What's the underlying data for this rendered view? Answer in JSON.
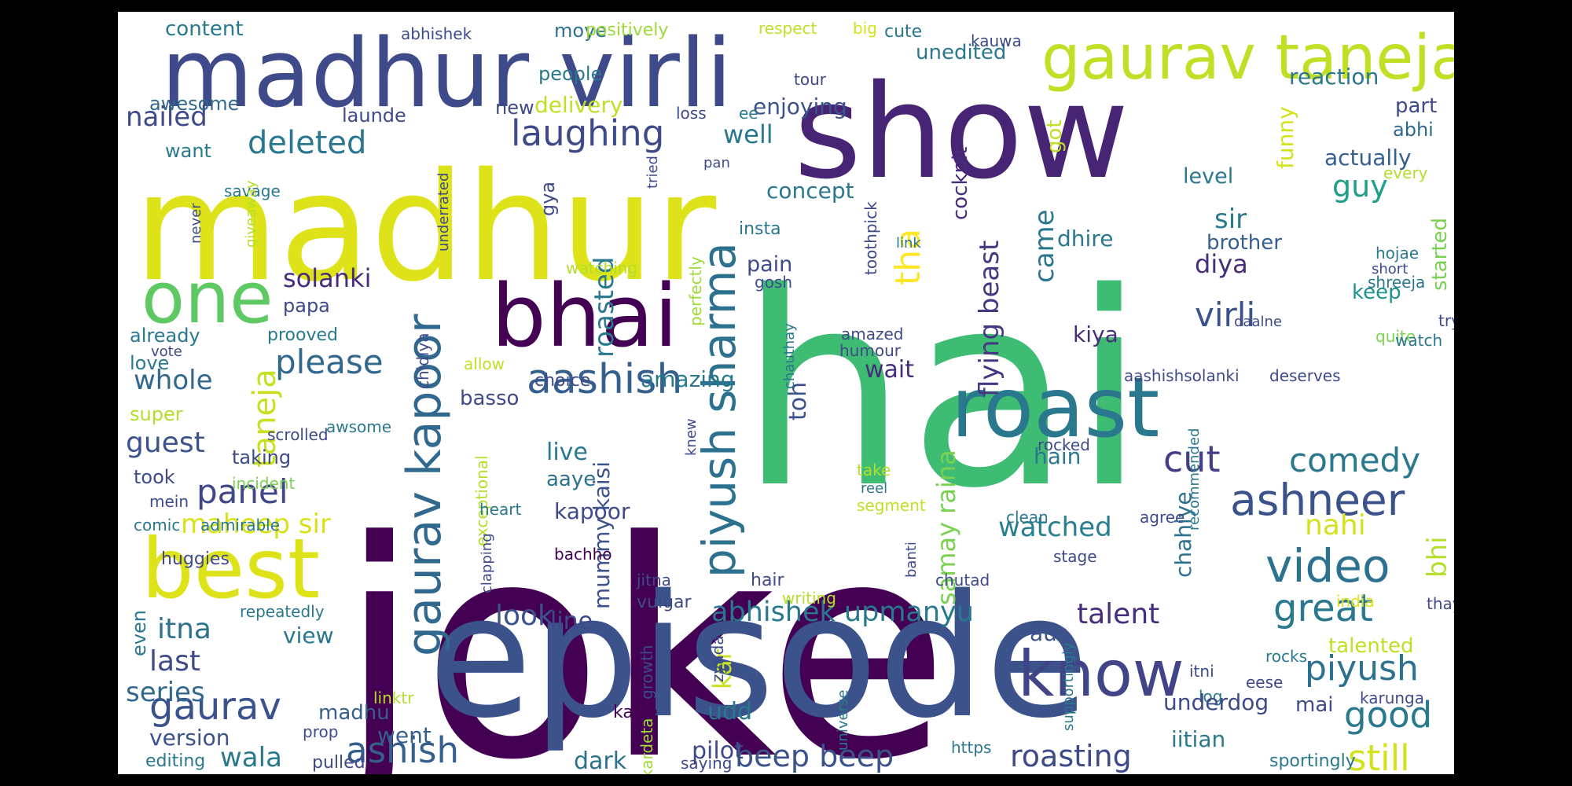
{
  "words": [
    {
      "text": "hai",
      "color": "#3fbc73"
    },
    {
      "text": "joke",
      "color": "#440154"
    },
    {
      "text": "episode",
      "color": "#3b528b"
    },
    {
      "text": "madhur",
      "color": "#dde318"
    },
    {
      "text": "show",
      "color": "#482475"
    },
    {
      "text": "madhur virli",
      "color": "#3e4a89"
    },
    {
      "text": "gaurav taneja",
      "color": "#c0df25"
    },
    {
      "text": "roast",
      "color": "#2a788e"
    },
    {
      "text": "bhai",
      "color": "#440154"
    },
    {
      "text": "best",
      "color": "#dde318"
    },
    {
      "text": "one",
      "color": "#5ec962"
    },
    {
      "text": "know",
      "color": "#414487"
    },
    {
      "text": "gaurav kapoor",
      "color": "#31688e"
    },
    {
      "text": "piyush sharma",
      "color": "#2c728e"
    },
    {
      "text": "aashish",
      "color": "#355f8d"
    },
    {
      "text": "ashneer",
      "color": "#3b528b"
    },
    {
      "text": "video",
      "color": "#2c728e"
    },
    {
      "text": "great",
      "color": "#2a788e"
    },
    {
      "text": "cut",
      "color": "#433e85"
    },
    {
      "text": "comedy",
      "color": "#2a788e"
    },
    {
      "text": "ashish",
      "color": "#355f8d"
    },
    {
      "text": "piyush",
      "color": "#2c728e"
    },
    {
      "text": "gaurav",
      "color": "#3b528b"
    },
    {
      "text": "laughing",
      "color": "#3e4a89"
    },
    {
      "text": "deleted",
      "color": "#2a788e"
    },
    {
      "text": "please",
      "color": "#31688e"
    },
    {
      "text": "panel",
      "color": "#404688"
    },
    {
      "text": "still",
      "color": "#d2e21b"
    },
    {
      "text": "good",
      "color": "#2a788e"
    },
    {
      "text": "beep beep",
      "color": "#3b528b"
    },
    {
      "text": "roasting",
      "color": "#3e4a89"
    },
    {
      "text": "abhishek upmanyu",
      "color": "#2a788e"
    },
    {
      "text": "talent",
      "color": "#472d7b"
    },
    {
      "text": "watched",
      "color": "#277f8e"
    },
    {
      "text": "samay raina",
      "color": "#7ad151"
    },
    {
      "text": "flying beast",
      "color": "#453781"
    },
    {
      "text": "tha",
      "color": "#fde725"
    },
    {
      "text": "taneja",
      "color": "#c8e020"
    },
    {
      "text": "maheep sir",
      "color": "#d8e219"
    },
    {
      "text": "guest",
      "color": "#3b528b"
    },
    {
      "text": "whole",
      "color": "#31688e"
    },
    {
      "text": "solanki",
      "color": "#472d7b"
    },
    {
      "text": "nailed",
      "color": "#3e4a89"
    },
    {
      "text": "virli",
      "color": "#3b528b"
    },
    {
      "text": "diya",
      "color": "#472d7b"
    },
    {
      "text": "sir",
      "color": "#2a788e"
    },
    {
      "text": "guy",
      "color": "#1f9e89"
    },
    {
      "text": "nahi",
      "color": "#d2e21b"
    },
    {
      "text": "bhi",
      "color": "#b5de2b"
    },
    {
      "text": "came",
      "color": "#2a788e"
    },
    {
      "text": "well",
      "color": "#2a788e"
    },
    {
      "text": "look",
      "color": "#3b528b"
    },
    {
      "text": "line",
      "color": "#3e4a89"
    },
    {
      "text": "itna",
      "color": "#2c728e"
    },
    {
      "text": "last",
      "color": "#3e4a89"
    },
    {
      "text": "series",
      "color": "#31688e"
    },
    {
      "text": "version",
      "color": "#3b528b"
    },
    {
      "text": "wala",
      "color": "#2a788e"
    },
    {
      "text": "went",
      "color": "#355f8d"
    },
    {
      "text": "madhu",
      "color": "#355f8d"
    },
    {
      "text": "view",
      "color": "#2a788e"
    },
    {
      "text": "kar",
      "color": "#c8e020"
    },
    {
      "text": "udd",
      "color": "#2a788e"
    },
    {
      "text": "pilot",
      "color": "#3e4a89"
    },
    {
      "text": "dark",
      "color": "#2c728e"
    },
    {
      "text": "kapoor",
      "color": "#3e4a89"
    },
    {
      "text": "aaye",
      "color": "#2c728e"
    },
    {
      "text": "live",
      "color": "#2a788e"
    },
    {
      "text": "mummy kaisi",
      "color": "#3b528b"
    },
    {
      "text": "roasted",
      "color": "#2a788e"
    },
    {
      "text": "amazing",
      "color": "#2a788e"
    },
    {
      "text": "toh",
      "color": "#3b528b"
    },
    {
      "text": "wait",
      "color": "#472d7b"
    },
    {
      "text": "aur",
      "color": "#3b528b"
    },
    {
      "text": "chahiye",
      "color": "#2c728e"
    },
    {
      "text": "hain",
      "color": "#2a788e"
    },
    {
      "text": "kiya",
      "color": "#472d7b"
    },
    {
      "text": "dhire",
      "color": "#2a788e"
    },
    {
      "text": "pain",
      "color": "#3e4a89"
    },
    {
      "text": "concept",
      "color": "#2a788e"
    },
    {
      "text": "cockpit",
      "color": "#472d7b"
    },
    {
      "text": "got",
      "color": "#c0df25"
    },
    {
      "text": "level",
      "color": "#2a788e"
    },
    {
      "text": "brother",
      "color": "#355f8d"
    },
    {
      "text": "keep",
      "color": "#21918c"
    },
    {
      "text": "funny",
      "color": "#d2e21b"
    },
    {
      "text": "actually",
      "color": "#355f8d"
    },
    {
      "text": "reaction",
      "color": "#2a788e"
    },
    {
      "text": "part",
      "color": "#3e4a89"
    },
    {
      "text": "abhi",
      "color": "#31688e"
    },
    {
      "text": "started",
      "color": "#7ad151"
    },
    {
      "text": "every",
      "color": "#b5de2b"
    },
    {
      "text": "unedited",
      "color": "#2a788e"
    },
    {
      "text": "enjoying",
      "color": "#3b528b"
    },
    {
      "text": "delivery",
      "color": "#c0df25"
    },
    {
      "text": "people",
      "color": "#2a788e"
    },
    {
      "text": "moye",
      "color": "#2c728e"
    },
    {
      "text": "new",
      "color": "#3e4a89"
    },
    {
      "text": "launde",
      "color": "#3e4a89"
    },
    {
      "text": "awesome",
      "color": "#31688e"
    },
    {
      "text": "want",
      "color": "#2a788e"
    },
    {
      "text": "content",
      "color": "#2a788e"
    },
    {
      "text": "abhishek",
      "color": "#3e4a89"
    },
    {
      "text": "positively",
      "color": "#a0da39"
    },
    {
      "text": "respect",
      "color": "#c0df25"
    },
    {
      "text": "big",
      "color": "#d2e21b"
    },
    {
      "text": "cute",
      "color": "#2a788e"
    },
    {
      "text": "kauwa",
      "color": "#3e4a89"
    },
    {
      "text": "tour",
      "color": "#3e4a89"
    },
    {
      "text": "loss",
      "color": "#3e4a89"
    },
    {
      "text": "ee",
      "color": "#2a788e"
    },
    {
      "text": "savage",
      "color": "#2a788e"
    },
    {
      "text": "never",
      "color": "#3e4a89"
    },
    {
      "text": "giveaway",
      "color": "#b5de2b"
    },
    {
      "text": "underrated",
      "color": "#3e4a89"
    },
    {
      "text": "tried",
      "color": "#3e4a89"
    },
    {
      "text": "gya",
      "color": "#3e4a89"
    },
    {
      "text": "pan",
      "color": "#3e4a89"
    },
    {
      "text": "insta",
      "color": "#2a788e"
    },
    {
      "text": "toothpick",
      "color": "#3e4a89"
    },
    {
      "text": "link",
      "color": "#2a788e"
    },
    {
      "text": "gosh",
      "color": "#3e4a89"
    },
    {
      "text": "perfectly",
      "color": "#a0da39"
    },
    {
      "text": "watching",
      "color": "#b5de2b"
    },
    {
      "text": "papa",
      "color": "#3e4a89"
    },
    {
      "text": "already",
      "color": "#2a788e"
    },
    {
      "text": "prooved",
      "color": "#2a788e"
    },
    {
      "text": "chidiya",
      "color": "#3e4a89"
    },
    {
      "text": "love",
      "color": "#2a788e"
    },
    {
      "text": "vote",
      "color": "#3e4a89"
    },
    {
      "text": "allow",
      "color": "#c0df25"
    },
    {
      "text": "choice",
      "color": "#3e4a89"
    },
    {
      "text": "chauthay",
      "color": "#2a788e"
    },
    {
      "text": "amazed",
      "color": "#3e4a89"
    },
    {
      "text": "humour",
      "color": "#3e4a89"
    },
    {
      "text": "hojae",
      "color": "#2a788e"
    },
    {
      "text": "shreeja",
      "color": "#2a788e"
    },
    {
      "text": "short",
      "color": "#3e4a89"
    },
    {
      "text": "daalne",
      "color": "#3e4a89"
    },
    {
      "text": "try",
      "color": "#3e4a89"
    },
    {
      "text": "quite",
      "color": "#7ad151"
    },
    {
      "text": "watch",
      "color": "#2a788e"
    },
    {
      "text": "aashishsolanki",
      "color": "#3e4a89"
    },
    {
      "text": "deserves",
      "color": "#3e4a89"
    },
    {
      "text": "basso",
      "color": "#3e4a89"
    },
    {
      "text": "awsome",
      "color": "#2a788e"
    },
    {
      "text": "super",
      "color": "#b5de2b"
    },
    {
      "text": "scrolled",
      "color": "#3e4a89"
    },
    {
      "text": "taking",
      "color": "#3e4a89"
    },
    {
      "text": "incident",
      "color": "#7ad151"
    },
    {
      "text": "took",
      "color": "#3e4a89"
    },
    {
      "text": "mein",
      "color": "#3e4a89"
    },
    {
      "text": "comic",
      "color": "#2a788e"
    },
    {
      "text": "admirable",
      "color": "#2a788e"
    },
    {
      "text": "huggies",
      "color": "#3e4a89"
    },
    {
      "text": "exceptional",
      "color": "#b5de2b"
    },
    {
      "text": "heart",
      "color": "#2a788e"
    },
    {
      "text": "bachho",
      "color": "#440154"
    },
    {
      "text": "knew",
      "color": "#3e4a89"
    },
    {
      "text": "rocked",
      "color": "#3e4a89"
    },
    {
      "text": "take",
      "color": "#b5de2b"
    },
    {
      "text": "reel",
      "color": "#2a788e"
    },
    {
      "text": "segment",
      "color": "#c0df25"
    },
    {
      "text": "banti",
      "color": "#3e4a89"
    },
    {
      "text": "clean",
      "color": "#2a788e"
    },
    {
      "text": "stage",
      "color": "#3e4a89"
    },
    {
      "text": "agree",
      "color": "#3e4a89"
    },
    {
      "text": "recommended",
      "color": "#2a788e"
    },
    {
      "text": "even",
      "color": "#2a788e"
    },
    {
      "text": "repeatedly",
      "color": "#2a788e"
    },
    {
      "text": "clapping",
      "color": "#3e4a89"
    },
    {
      "text": "jitna",
      "color": "#3e4a89"
    },
    {
      "text": "vulgar",
      "color": "#3e4a89"
    },
    {
      "text": "hair",
      "color": "#3e4a89"
    },
    {
      "text": "writing",
      "color": "#b5de2b"
    },
    {
      "text": "chutad",
      "color": "#3e4a89"
    },
    {
      "text": "india",
      "color": "#dde318"
    },
    {
      "text": "thay",
      "color": "#3e4a89"
    },
    {
      "text": "talented",
      "color": "#c0df25"
    },
    {
      "text": "rocks",
      "color": "#2a788e"
    },
    {
      "text": "eese",
      "color": "#3e4a89"
    },
    {
      "text": "log",
      "color": "#2a788e"
    },
    {
      "text": "itni",
      "color": "#3e4a89"
    },
    {
      "text": "karunga",
      "color": "#3e4a89"
    },
    {
      "text": "zyada",
      "color": "#3e4a89"
    },
    {
      "text": "growth",
      "color": "#3e4a89"
    },
    {
      "text": "kaise",
      "color": "#440154"
    },
    {
      "text": "kardeta",
      "color": "#a0da39"
    },
    {
      "text": "universe",
      "color": "#2a788e"
    },
    {
      "text": "supportingly",
      "color": "#2a788e"
    },
    {
      "text": "https",
      "color": "#2a788e"
    },
    {
      "text": "underdog",
      "color": "#3e4a89"
    },
    {
      "text": "mai",
      "color": "#3e4a89"
    },
    {
      "text": "iitian",
      "color": "#2a788e"
    },
    {
      "text": "sportingly",
      "color": "#2a788e"
    },
    {
      "text": "saying",
      "color": "#3e4a89"
    },
    {
      "text": "editing",
      "color": "#2a788e"
    },
    {
      "text": "pulled",
      "color": "#3e4a89"
    },
    {
      "text": "prop",
      "color": "#3e4a89"
    },
    {
      "text": "linktr",
      "color": "#b5de2b"
    }
  ]
}
